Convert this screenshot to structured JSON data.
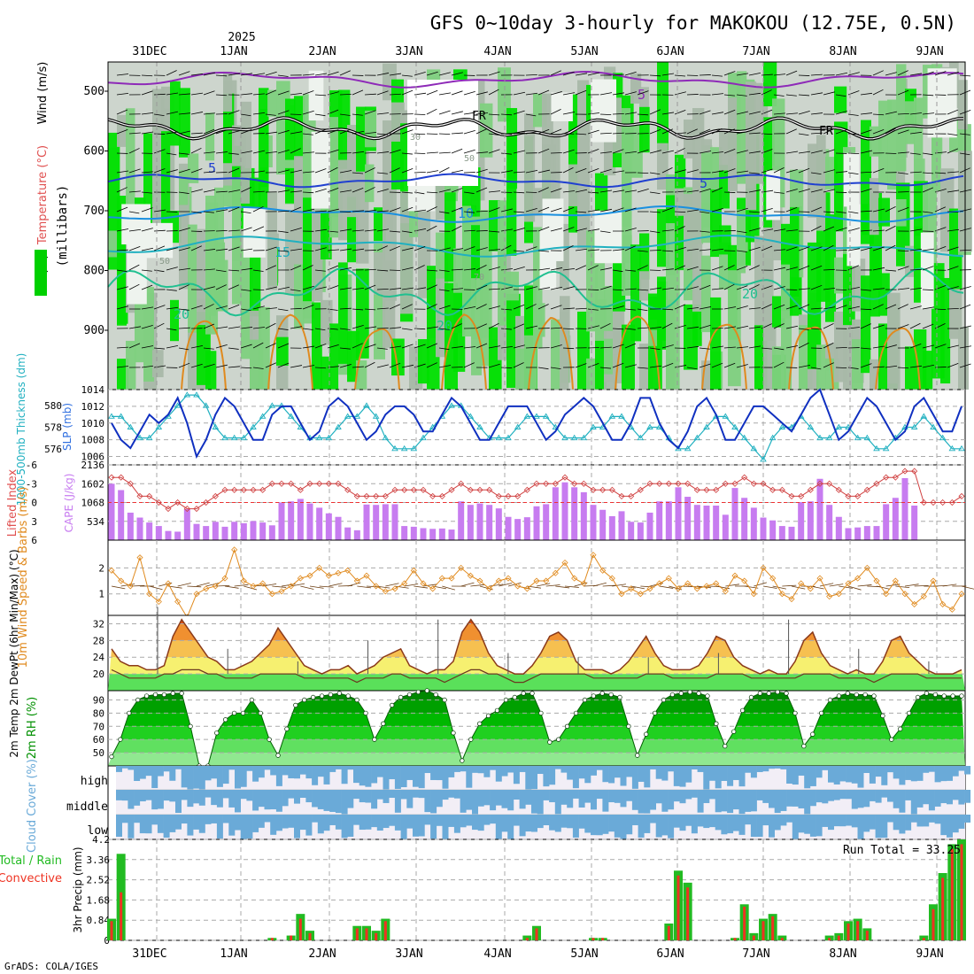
{
  "chart_data": {
    "type": "meteogram",
    "title": "GFS 0~10day 3-hourly for MAKOKOU (12.75E, 0.5N)",
    "year_label": "2025",
    "date_labels": [
      "31DEC",
      "1JAN",
      "2JAN",
      "3JAN",
      "4JAN",
      "5JAN",
      "6JAN",
      "7JAN",
      "8JAN",
      "9JAN"
    ],
    "credit": "GrADS: COLA/IGES",
    "colors": {
      "rh_dark": "#00a000",
      "rh_mid": "#00e000",
      "rh_light": "#7ed07e",
      "temp": "#1a7fe0",
      "cape": "#c77cf0",
      "precip_total": "#22bb22",
      "precip_conv": "#ee3322",
      "wind": "#e08a1e",
      "slp": "#1030c0",
      "thick": "#20b0c0",
      "cloud": "#6aaad8",
      "rh2m": "#009000"
    },
    "panels": {
      "upper_air": {
        "ylabel": "(millibars)",
        "ylabel_vars": [
          "RH (%)",
          "Temperature (°C)",
          "Wind (m/s)"
        ],
        "y_ticks": [
          500,
          600,
          700,
          800,
          900
        ],
        "isotherm_labels": [
          "5",
          "5",
          "5",
          "10",
          "15",
          "20",
          "20",
          "20"
        ],
        "freezing_label": "FR",
        "rh_labels": [
          "30",
          "50",
          "50",
          "70"
        ]
      },
      "slp_thickness": {
        "ylabel_left": "1000-500mb Thickness (dm)",
        "ylabel_right": "SLP (mb)",
        "left_ticks": [
          576,
          578,
          580
        ],
        "right_ticks": [
          1006,
          1008,
          1010,
          1012,
          1014
        ],
        "slp": [
          1010,
          1008,
          1007,
          1009,
          1011,
          1010,
          1011,
          1013,
          1010,
          1006,
          1008,
          1011,
          1013,
          1012,
          1010,
          1008,
          1008,
          1011,
          1012,
          1012,
          1010,
          1008,
          1009,
          1012,
          1013,
          1012,
          1010,
          1008,
          1009,
          1011,
          1012,
          1012,
          1011,
          1009,
          1009,
          1011,
          1013,
          1012,
          1010,
          1008,
          1008,
          1010,
          1012,
          1012,
          1012,
          1010,
          1008,
          1009,
          1011,
          1012,
          1013,
          1012,
          1010,
          1008,
          1008,
          1010,
          1013,
          1013,
          1010,
          1008,
          1007,
          1009,
          1012,
          1013,
          1011,
          1008,
          1008,
          1010,
          1012,
          1012,
          1011,
          1010,
          1009,
          1011,
          1013,
          1014,
          1011,
          1008,
          1009,
          1011,
          1013,
          1012,
          1010,
          1008,
          1009,
          1012,
          1013,
          1011,
          1009,
          1009,
          1012
        ],
        "thickness": [
          579,
          579,
          578,
          577,
          577,
          578,
          579,
          580,
          581,
          581,
          580,
          578,
          577,
          577,
          577,
          578,
          579,
          580,
          580,
          579,
          578,
          577,
          577,
          577,
          578,
          579,
          579,
          580,
          579,
          577,
          576,
          576,
          576,
          577,
          578,
          579,
          580,
          580,
          579,
          578,
          577,
          577,
          577,
          578,
          579,
          579,
          579,
          578,
          577,
          577,
          577,
          578,
          578,
          579,
          579,
          578,
          577,
          578,
          578,
          577,
          576,
          576,
          577,
          578,
          579,
          579,
          578,
          577,
          576,
          575,
          577,
          578,
          578,
          579,
          578,
          577,
          577,
          578,
          578,
          577,
          577,
          576,
          576,
          577,
          578,
          578,
          579,
          578,
          577,
          576,
          576
        ]
      },
      "cape_li": {
        "ylabel_left": "Lifted Index",
        "ylabel_right": "CAPE (J/kg)",
        "li_ticks": [
          -6,
          -3,
          0,
          3,
          6
        ],
        "cape_ticks": [
          534,
          1068,
          1602,
          2136
        ],
        "cape": [
          1600,
          1420,
          780,
          640,
          500,
          400,
          260,
          240,
          880,
          460,
          400,
          520,
          380,
          520,
          480,
          540,
          500,
          420,
          1070,
          1100,
          1170,
          1040,
          920,
          760,
          660,
          360,
          280,
          1010,
          1000,
          1020,
          1020,
          400,
          380,
          340,
          320,
          330,
          300,
          1100,
          1000,
          1040,
          1000,
          900,
          660,
          600,
          650,
          960,
          1020,
          1500,
          1640,
          1500,
          1360,
          1000,
          860,
          680,
          820,
          520,
          500,
          780,
          1100,
          1100,
          1500,
          1230,
          1000,
          980,
          980,
          720,
          1480,
          1200,
          920,
          640,
          560,
          400,
          380,
          1080,
          1100,
          1740,
          1000,
          660,
          340,
          360,
          400,
          400,
          1020,
          1200,
          1760,
          980,
          0,
          0,
          0,
          0,
          0
        ],
        "li": [
          -4,
          -4,
          -3,
          -1,
          -1,
          0,
          1,
          0,
          1,
          1,
          0,
          -1,
          -2,
          -2,
          -2,
          -2,
          -2,
          -3,
          -3,
          -3,
          -2,
          -3,
          -3,
          -3,
          -3,
          -2,
          -1,
          -1,
          -1,
          -1,
          -2,
          -2,
          -2,
          -2,
          -1,
          -1,
          -2,
          -3,
          -2,
          -2,
          -2,
          -1,
          -1,
          -1,
          -2,
          -3,
          -3,
          -3,
          -4,
          -3,
          -3,
          -2,
          -2,
          -2,
          -1,
          -1,
          -2,
          -3,
          -3,
          -3,
          -3,
          -3,
          -2,
          -2,
          -2,
          -3,
          -3,
          -4,
          -3,
          -3,
          -2,
          -2,
          -1,
          -1,
          -2,
          -3,
          -3,
          -2,
          -1,
          -1,
          -2,
          -3,
          -4,
          -4,
          -5,
          -5,
          0,
          0,
          0,
          0,
          -1
        ]
      },
      "wind10m": {
        "ylabel": "10m Wind Speed & Barbs (m/s)",
        "y_ticks": [
          1,
          2
        ],
        "speed": [
          1.9,
          1.5,
          1.3,
          2.4,
          1.0,
          0.7,
          1.4,
          0.7,
          0.1,
          1.0,
          1.2,
          1.3,
          1.6,
          2.7,
          1.5,
          1.3,
          1.4,
          1.0,
          1.1,
          1.3,
          1.6,
          1.7,
          2.0,
          1.7,
          1.8,
          1.9,
          1.5,
          1.7,
          1.3,
          1.1,
          1.2,
          1.4,
          1.9,
          1.4,
          1.2,
          1.6,
          1.6,
          2.0,
          1.7,
          1.5,
          1.2,
          1.5,
          1.6,
          1.3,
          1.2,
          1.5,
          1.5,
          1.8,
          2.2,
          1.6,
          1.4,
          2.5,
          1.9,
          1.6,
          1.0,
          1.2,
          1.0,
          1.2,
          1.4,
          1.6,
          1.2,
          1.4,
          1.2,
          1.3,
          1.4,
          1.1,
          1.7,
          1.5,
          1.0,
          2.0,
          1.6,
          1.0,
          0.8,
          1.4,
          1.2,
          1.6,
          0.9,
          1.0,
          1.4,
          1.6,
          2.0,
          1.5,
          1.0,
          1.5,
          1.0,
          0.6,
          0.9,
          1.5,
          0.6,
          0.4,
          1.0
        ]
      },
      "temp2m": {
        "ylabel": "2m Temp 2m DewPt (6hr Min/Max) (°C)",
        "y_ticks": [
          20,
          24,
          28,
          32
        ],
        "temp": [
          26,
          23,
          22,
          22,
          21,
          21,
          22,
          29,
          33,
          30,
          27,
          24,
          23,
          21,
          21,
          22,
          23,
          25,
          27,
          31,
          28,
          25,
          22,
          21,
          20,
          21,
          21,
          22,
          20,
          21,
          22,
          24,
          25,
          26,
          22,
          21,
          20,
          21,
          21,
          23,
          30,
          33,
          30,
          25,
          22,
          21,
          20,
          20,
          22,
          25,
          29,
          30,
          28,
          23,
          21,
          21,
          21,
          20,
          21,
          23,
          26,
          29,
          25,
          22,
          21,
          21,
          21,
          22,
          25,
          29,
          28,
          24,
          22,
          21,
          20,
          21,
          20,
          20,
          23,
          28,
          30,
          25,
          22,
          21,
          20,
          21,
          20,
          20,
          23,
          28,
          29,
          25,
          23,
          21,
          20,
          20,
          20,
          21
        ],
        "dewpt": [
          21,
          20,
          19,
          19,
          19,
          19,
          20,
          20,
          21,
          21,
          21,
          20,
          20,
          19,
          19,
          19,
          19,
          20,
          20,
          20,
          20,
          20,
          19,
          19,
          19,
          19,
          19,
          19,
          18,
          19,
          19,
          19,
          20,
          20,
          19,
          19,
          19,
          19,
          18,
          19,
          20,
          21,
          21,
          20,
          20,
          19,
          18,
          18,
          19,
          20,
          20,
          20,
          20,
          20,
          20,
          19,
          19,
          19,
          19,
          19,
          19,
          20,
          20,
          20,
          19,
          19,
          19,
          19,
          19,
          20,
          20,
          20,
          20,
          19,
          19,
          19,
          19,
          19,
          19,
          20,
          20,
          20,
          20,
          19,
          19,
          19,
          19,
          18,
          19,
          20,
          20,
          20,
          20,
          19,
          19,
          19,
          19,
          19
        ]
      },
      "rh2m": {
        "ylabel": "2m RH (%)",
        "y_ticks": [
          50,
          60,
          70,
          80,
          90
        ],
        "rh": [
          47,
          60,
          80,
          90,
          93,
          94,
          94,
          95,
          95,
          70,
          40,
          40,
          65,
          75,
          80,
          80,
          90,
          80,
          60,
          48,
          68,
          86,
          90,
          92,
          93,
          94,
          95,
          93,
          90,
          80,
          60,
          72,
          86,
          92,
          94,
          96,
          97,
          94,
          90,
          65,
          44,
          60,
          72,
          78,
          82,
          90,
          92,
          95,
          95,
          80,
          58,
          60,
          70,
          80,
          90,
          93,
          95,
          94,
          92,
          70,
          48,
          64,
          80,
          90,
          94,
          95,
          96,
          95,
          93,
          72,
          55,
          66,
          82,
          92,
          95,
          95,
          96,
          95,
          80,
          55,
          64,
          80,
          90,
          93,
          95,
          94,
          94,
          93,
          78,
          60,
          68,
          80,
          92,
          95,
          94,
          93,
          93,
          93
        ]
      },
      "cloud": {
        "ylabel": "Cloud Cover (%)",
        "levels": [
          "high",
          "middle",
          "low"
        ]
      },
      "precip": {
        "ylabel": "3hr Precip (mm)",
        "ylabel_vars": [
          "Total / Rain",
          "Convective"
        ],
        "y_ticks": [
          "0",
          "0.84",
          "1.68",
          "2.52",
          "3.36",
          "4.2"
        ],
        "run_total": "Run Total = 33.25",
        "total": [
          0.9,
          3.6,
          0,
          0,
          0,
          0,
          0,
          0,
          0,
          0,
          0,
          0,
          0,
          0,
          0,
          0,
          0,
          0.1,
          0,
          0.2,
          1.1,
          0.4,
          0,
          0,
          0,
          0,
          0.6,
          0.6,
          0.4,
          0.9,
          0,
          0,
          0,
          0,
          0,
          0,
          0,
          0,
          0,
          0,
          0,
          0,
          0,
          0,
          0.2,
          0.6,
          0,
          0,
          0,
          0,
          0,
          0.1,
          0.1,
          0,
          0,
          0,
          0,
          0,
          0,
          0.7,
          2.9,
          2.4,
          0,
          0,
          0,
          0,
          0.1,
          1.5,
          0.3,
          0.9,
          1.1,
          0.2,
          0,
          0,
          0,
          0,
          0.2,
          0.3,
          0.8,
          0.9,
          0.5,
          0,
          0,
          0,
          0,
          0,
          0.2,
          1.5,
          2.8,
          4.0,
          4.2
        ],
        "conv": [
          0.8,
          2.0,
          0,
          0,
          0,
          0,
          0,
          0,
          0,
          0,
          0,
          0,
          0,
          0,
          0,
          0,
          0,
          0.1,
          0,
          0.2,
          0.9,
          0.3,
          0,
          0,
          0,
          0,
          0.5,
          0.5,
          0.3,
          0.8,
          0,
          0,
          0,
          0,
          0,
          0,
          0,
          0,
          0,
          0,
          0,
          0,
          0,
          0,
          0.1,
          0.5,
          0,
          0,
          0,
          0,
          0,
          0.1,
          0.1,
          0,
          0,
          0,
          0,
          0,
          0,
          0.6,
          2.7,
          2.2,
          0,
          0,
          0,
          0,
          0.1,
          1.4,
          0.2,
          0.8,
          1.0,
          0.1,
          0,
          0,
          0,
          0,
          0.1,
          0.2,
          0.7,
          0.8,
          0.4,
          0,
          0,
          0,
          0,
          0,
          0.1,
          1.3,
          2.6,
          3.8,
          4.0
        ]
      }
    }
  }
}
